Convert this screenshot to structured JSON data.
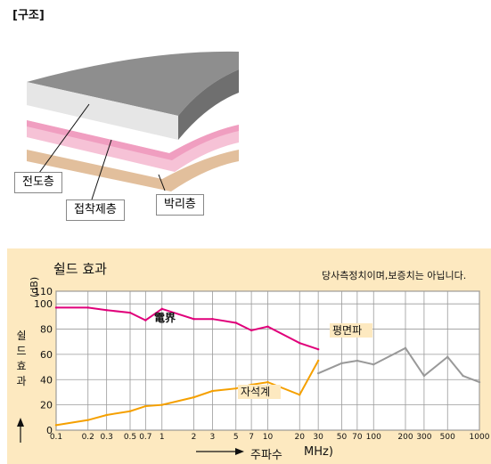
{
  "structure": {
    "title": "[구조]",
    "layers": [
      {
        "name": "conductive",
        "label": "전도층",
        "color": "#a9a9a9"
      },
      {
        "name": "adhesive",
        "label": "접착제층",
        "color": "#f2a7c4"
      },
      {
        "name": "release",
        "label": "박리층",
        "color": "#e2bf9c"
      }
    ]
  },
  "chart_data": {
    "type": "line",
    "title": "쉴드 효과",
    "note": "당사측정치이며,보증치는 아닙니다.",
    "ylabel": "쉴드 효과",
    "yunit": "(dB)",
    "xlabel": "주파수",
    "xunit": "MHz)",
    "ylim": [
      0,
      110
    ],
    "yticks": [
      0,
      20,
      40,
      60,
      80,
      100,
      110
    ],
    "xtick_labels": [
      "0.1",
      "0.2",
      "0.3",
      "0.5",
      "0.7",
      "1",
      "2",
      "3",
      "5",
      "7",
      "10",
      "20",
      "30",
      "50",
      "70",
      "100",
      "200",
      "300",
      "500",
      "1000"
    ],
    "xtick_values": [
      0.1,
      0.2,
      0.3,
      0.5,
      0.7,
      1,
      2,
      3,
      5,
      7,
      10,
      20,
      30,
      50,
      70,
      100,
      200,
      300,
      500,
      1000
    ],
    "xscale": "log",
    "grid": true,
    "series": [
      {
        "name": "電界",
        "color": "#e0007a",
        "x": [
          0.1,
          0.2,
          0.3,
          0.5,
          0.7,
          1,
          2,
          3,
          5,
          7,
          10,
          20,
          30
        ],
        "y": [
          97,
          97,
          95,
          93,
          87,
          96,
          88,
          88,
          85,
          79,
          82,
          69,
          64
        ]
      },
      {
        "name": "자석계",
        "color": "#f5a000",
        "x": [
          0.1,
          0.2,
          0.3,
          0.5,
          0.7,
          1,
          2,
          3,
          5,
          7,
          10,
          20,
          30
        ],
        "y": [
          4,
          8,
          12,
          15,
          19,
          20,
          26,
          31,
          33,
          36,
          38,
          28,
          55
        ]
      },
      {
        "name": "평면파",
        "color": "#999999",
        "x": [
          30,
          50,
          70,
          100,
          200,
          300,
          500,
          700,
          1000
        ],
        "y": [
          45,
          53,
          55,
          52,
          65,
          43,
          58,
          43,
          38
        ]
      }
    ]
  }
}
